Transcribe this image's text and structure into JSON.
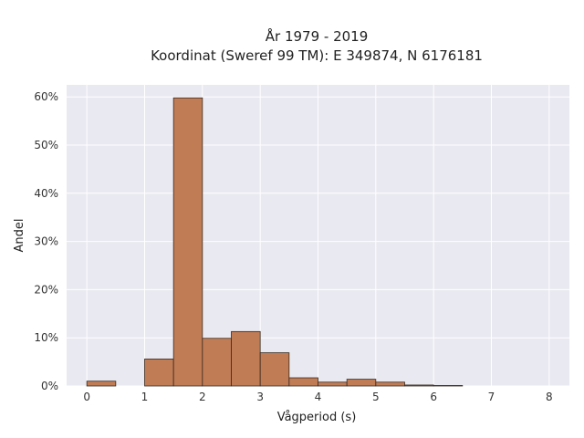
{
  "chart_data": {
    "type": "bar",
    "title_line1": "År 1979 - 2019",
    "title_line2": "Koordinat (Sweref 99 TM): E 349874, N 6176181",
    "xlabel": "Vågperiod (s)",
    "ylabel": "Andel",
    "xlim": [
      -0.35,
      8.35
    ],
    "ylim": [
      0,
      0.625
    ],
    "x_ticks": [
      0,
      1,
      2,
      3,
      4,
      5,
      6,
      7,
      8
    ],
    "x_tick_labels": [
      "0",
      "1",
      "2",
      "3",
      "4",
      "5",
      "6",
      "7",
      "8"
    ],
    "y_ticks": [
      0,
      0.1,
      0.2,
      0.3,
      0.4,
      0.5,
      0.6
    ],
    "y_tick_labels": [
      "0%",
      "10%",
      "20%",
      "30%",
      "40%",
      "50%",
      "60%"
    ],
    "grid": true,
    "legend": "none",
    "bins": [
      {
        "x0": 0.0,
        "x1": 0.5,
        "value": 0.01
      },
      {
        "x0": 1.0,
        "x1": 1.5,
        "value": 0.056
      },
      {
        "x0": 1.5,
        "x1": 2.0,
        "value": 0.598
      },
      {
        "x0": 2.0,
        "x1": 2.5,
        "value": 0.099
      },
      {
        "x0": 2.5,
        "x1": 3.0,
        "value": 0.113
      },
      {
        "x0": 3.0,
        "x1": 3.5,
        "value": 0.069
      },
      {
        "x0": 3.5,
        "x1": 4.0,
        "value": 0.017
      },
      {
        "x0": 4.0,
        "x1": 4.5,
        "value": 0.008
      },
      {
        "x0": 4.5,
        "x1": 5.0,
        "value": 0.014
      },
      {
        "x0": 5.0,
        "x1": 5.5,
        "value": 0.008
      },
      {
        "x0": 5.5,
        "x1": 6.0,
        "value": 0.002
      },
      {
        "x0": 6.0,
        "x1": 6.5,
        "value": 0.001
      }
    ],
    "colors": {
      "bar_fill": "#c07c55",
      "bar_stroke": "#3a2a20",
      "plot_background": "#e9e9f1",
      "grid": "#ffffff"
    }
  }
}
